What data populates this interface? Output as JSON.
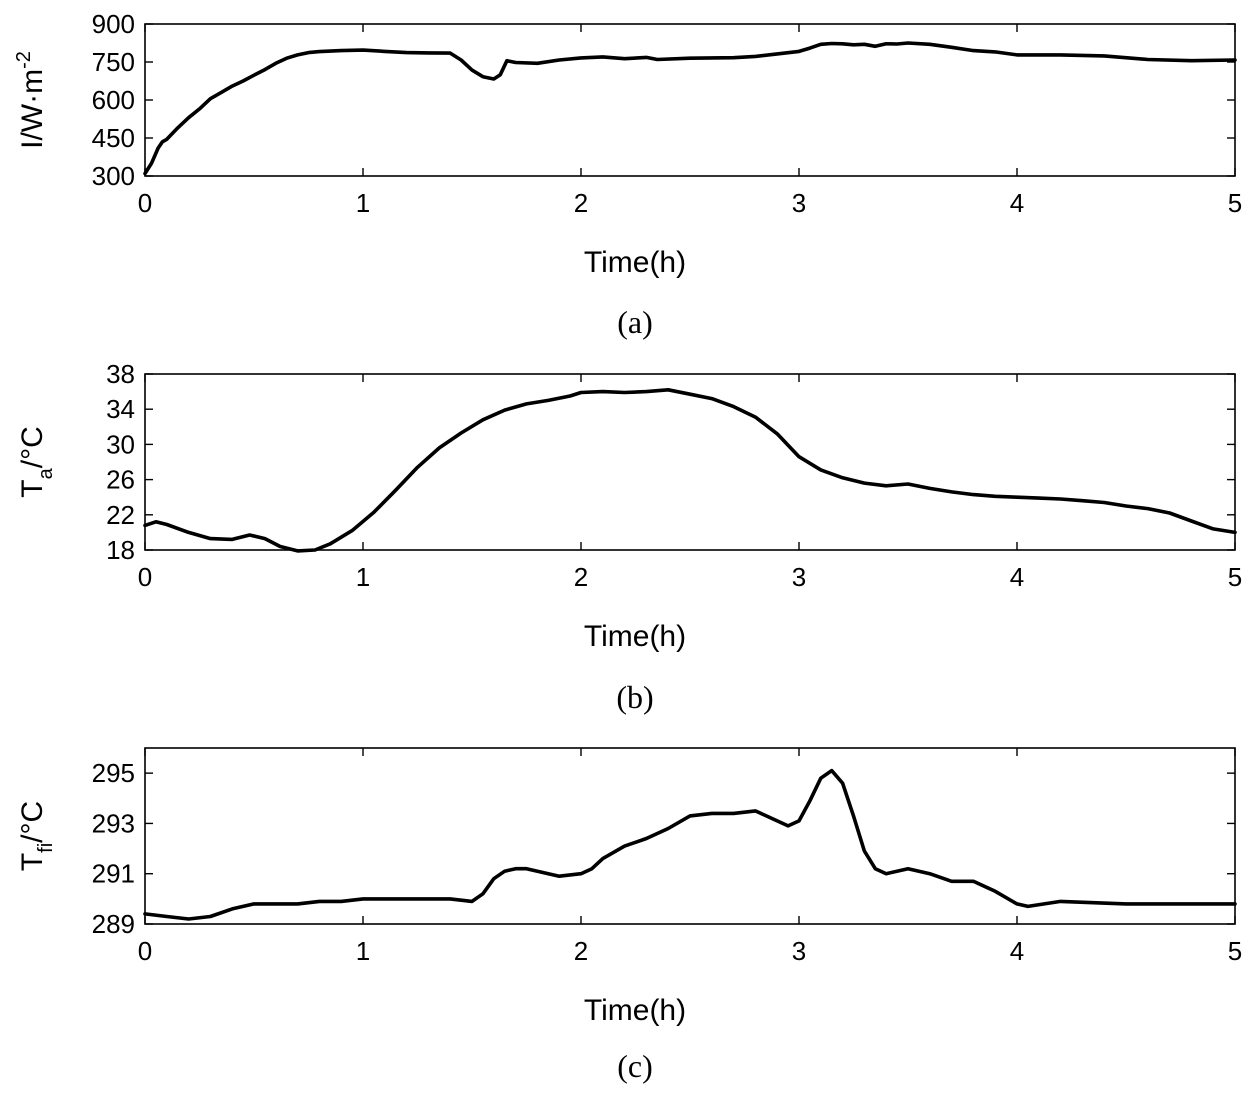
{
  "chart_data": [
    {
      "type": "line",
      "caption": "(a)",
      "xlabel": "Time(h)",
      "ylabel_main": "I/W·m",
      "ylabel_sup": "-2",
      "xlim": [
        0,
        5
      ],
      "ylim": [
        300,
        900
      ],
      "xticks": [
        0,
        1,
        2,
        3,
        4,
        5
      ],
      "yticks": [
        300,
        450,
        600,
        750,
        900
      ],
      "grid": false,
      "series": [
        {
          "name": "I",
          "x": [
            0,
            0.03,
            0.06,
            0.08,
            0.1,
            0.15,
            0.2,
            0.25,
            0.3,
            0.35,
            0.4,
            0.45,
            0.5,
            0.55,
            0.6,
            0.65,
            0.7,
            0.75,
            0.8,
            0.9,
            1.0,
            1.1,
            1.2,
            1.3,
            1.4,
            1.45,
            1.5,
            1.55,
            1.6,
            1.63,
            1.66,
            1.7,
            1.8,
            1.9,
            2.0,
            2.1,
            2.2,
            2.3,
            2.35,
            2.5,
            2.6,
            2.7,
            2.8,
            2.9,
            3.0,
            3.05,
            3.1,
            3.15,
            3.2,
            3.25,
            3.3,
            3.35,
            3.4,
            3.45,
            3.5,
            3.6,
            3.7,
            3.8,
            3.9,
            4.0,
            4.2,
            4.4,
            4.6,
            4.8,
            5.0
          ],
          "y": [
            310,
            350,
            410,
            435,
            445,
            490,
            530,
            565,
            605,
            630,
            655,
            675,
            698,
            720,
            745,
            765,
            778,
            787,
            791,
            795,
            797,
            792,
            787,
            786,
            785,
            758,
            718,
            692,
            683,
            700,
            755,
            748,
            745,
            758,
            766,
            770,
            763,
            768,
            760,
            765,
            766,
            767,
            772,
            782,
            792,
            805,
            820,
            823,
            822,
            818,
            820,
            812,
            822,
            821,
            825,
            820,
            808,
            795,
            790,
            778,
            778,
            774,
            760,
            755,
            758
          ]
        }
      ]
    },
    {
      "type": "line",
      "caption": "(b)",
      "xlabel": "Time(h)",
      "ylabel_main": "T",
      "ylabel_sub": "a",
      "ylabel_rest": "/°C",
      "xlim": [
        0,
        5
      ],
      "ylim": [
        18,
        38
      ],
      "xticks": [
        0,
        1,
        2,
        3,
        4,
        5
      ],
      "yticks": [
        18,
        22,
        26,
        30,
        34,
        38
      ],
      "grid": false,
      "series": [
        {
          "name": "Ta",
          "x": [
            0,
            0.05,
            0.1,
            0.2,
            0.3,
            0.4,
            0.48,
            0.55,
            0.62,
            0.7,
            0.78,
            0.85,
            0.95,
            1.05,
            1.15,
            1.25,
            1.35,
            1.45,
            1.55,
            1.65,
            1.75,
            1.85,
            1.95,
            2.0,
            2.1,
            2.2,
            2.3,
            2.4,
            2.5,
            2.6,
            2.7,
            2.8,
            2.9,
            3.0,
            3.1,
            3.2,
            3.3,
            3.4,
            3.5,
            3.6,
            3.7,
            3.8,
            3.9,
            4.0,
            4.1,
            4.2,
            4.3,
            4.4,
            4.5,
            4.6,
            4.7,
            4.8,
            4.9,
            5.0
          ],
          "y": [
            20.8,
            21.2,
            20.9,
            20.0,
            19.3,
            19.2,
            19.7,
            19.3,
            18.4,
            17.9,
            18.0,
            18.7,
            20.2,
            22.3,
            24.8,
            27.4,
            29.6,
            31.3,
            32.8,
            33.9,
            34.6,
            35.0,
            35.5,
            35.9,
            36.0,
            35.9,
            36.0,
            36.2,
            35.7,
            35.2,
            34.3,
            33.1,
            31.2,
            28.6,
            27.1,
            26.2,
            25.6,
            25.3,
            25.5,
            25.0,
            24.6,
            24.3,
            24.1,
            24.0,
            23.9,
            23.8,
            23.6,
            23.4,
            23.0,
            22.7,
            22.2,
            21.3,
            20.4,
            20.0
          ]
        }
      ]
    },
    {
      "type": "line",
      "caption": "(c)",
      "xlabel": "Time(h)",
      "ylabel_main": "T",
      "ylabel_sub": "fi",
      "ylabel_rest": "/°C",
      "xlim": [
        0,
        5
      ],
      "ylim": [
        289,
        296
      ],
      "xticks": [
        0,
        1,
        2,
        3,
        4,
        5
      ],
      "yticks": [
        289,
        291,
        293,
        295
      ],
      "grid": false,
      "series": [
        {
          "name": "Tfi",
          "x": [
            0,
            0.1,
            0.2,
            0.3,
            0.4,
            0.5,
            0.6,
            0.7,
            0.8,
            0.9,
            1.0,
            1.1,
            1.2,
            1.3,
            1.4,
            1.5,
            1.55,
            1.6,
            1.65,
            1.7,
            1.75,
            1.8,
            1.9,
            2.0,
            2.05,
            2.1,
            2.2,
            2.3,
            2.4,
            2.5,
            2.6,
            2.7,
            2.8,
            2.85,
            2.9,
            2.95,
            3.0,
            3.05,
            3.1,
            3.15,
            3.2,
            3.25,
            3.3,
            3.35,
            3.4,
            3.5,
            3.6,
            3.7,
            3.8,
            3.9,
            4.0,
            4.05,
            4.2,
            4.5,
            5.0
          ],
          "y": [
            289.4,
            289.3,
            289.2,
            289.3,
            289.6,
            289.8,
            289.8,
            289.8,
            289.9,
            289.9,
            290.0,
            290.0,
            290.0,
            290.0,
            290.0,
            289.9,
            290.2,
            290.8,
            291.1,
            291.2,
            291.2,
            291.1,
            290.9,
            291.0,
            291.2,
            291.6,
            292.1,
            292.4,
            292.8,
            293.3,
            293.4,
            293.4,
            293.5,
            293.3,
            293.1,
            292.9,
            293.1,
            293.9,
            294.8,
            295.1,
            294.6,
            293.3,
            291.9,
            291.2,
            291.0,
            291.2,
            291.0,
            290.7,
            290.7,
            290.3,
            289.8,
            289.7,
            289.9,
            289.8,
            289.8
          ]
        }
      ]
    }
  ]
}
